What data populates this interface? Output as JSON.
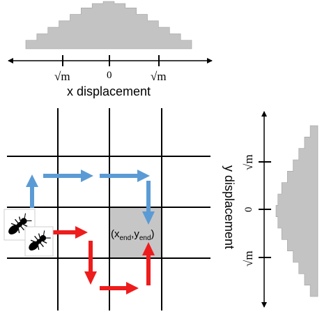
{
  "x_axis": {
    "label": "x displacement",
    "tick_left": "√m",
    "tick_center": "0",
    "tick_right": "√m",
    "histogram_steps": [
      4,
      7,
      10,
      13,
      16,
      19,
      21,
      22,
      21,
      19,
      16,
      13,
      10,
      7,
      4
    ]
  },
  "y_axis": {
    "label": "y displacement",
    "tick_top": "√m",
    "tick_center": "0",
    "tick_bottom": "√m",
    "histogram_steps": [
      4,
      7,
      10,
      13,
      16,
      19,
      21,
      22,
      21,
      19,
      16,
      13,
      10,
      7,
      4
    ]
  },
  "grid": {
    "endpoint_label_prefix": "(x",
    "endpoint_sub_x": "end",
    "endpoint_comma": ",y",
    "endpoint_sub_y": "end",
    "endpoint_suffix": ")"
  },
  "colors": {
    "histogram_fill": "#c3c3c3",
    "histogram_stroke": "#a0a0a0",
    "end_cell": "#c6c6c6",
    "blue_path": "#5b9bd5",
    "red_path": "#ee1c1c",
    "axis": "#000000"
  },
  "icons": {
    "ant_1": "ant-icon",
    "ant_2": "ant-icon"
  }
}
